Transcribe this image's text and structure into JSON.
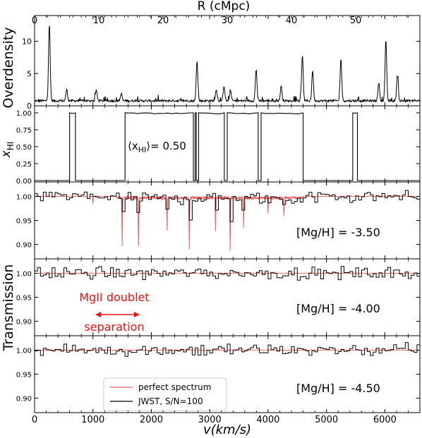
{
  "chart_data": [
    {
      "type": "line",
      "panel": "overdensity",
      "ylabel": "Overdensity",
      "top_axis_label": "R (cMpc)",
      "top_ticks": [
        0,
        10,
        20,
        30,
        40,
        50
      ],
      "xlim_R": [
        0,
        60
      ],
      "ylim": [
        0,
        14
      ],
      "yticks": [
        0,
        5,
        10
      ],
      "peaks": [
        {
          "R": 2.3,
          "value": 12.5
        },
        {
          "R": 5.0,
          "value": 2.5
        },
        {
          "R": 9.6,
          "value": 2.4
        },
        {
          "R": 13.5,
          "value": 1.8
        },
        {
          "R": 25.3,
          "value": 6.8
        },
        {
          "R": 28.3,
          "value": 2.5
        },
        {
          "R": 29.5,
          "value": 3.0
        },
        {
          "R": 30.5,
          "value": 2.3
        },
        {
          "R": 34.5,
          "value": 5.5
        },
        {
          "R": 38.4,
          "value": 3.0
        },
        {
          "R": 41.7,
          "value": 7.7
        },
        {
          "R": 43.3,
          "value": 5.4
        },
        {
          "R": 47.7,
          "value": 7.2
        },
        {
          "R": 53.6,
          "value": 3.5
        },
        {
          "R": 54.7,
          "value": 10.0
        },
        {
          "R": 56.5,
          "value": 4.6
        }
      ]
    },
    {
      "type": "line",
      "panel": "xHI",
      "ylabel_main": "x",
      "ylabel_sub": "HI",
      "ylim": [
        0,
        1
      ],
      "yticks": [
        "0.00",
        "0.25",
        "0.50",
        "0.75",
        "1.00"
      ],
      "annotation_left": "⟨x",
      "annotation_sub": "HI",
      "annotation_right": "⟩= 0.50",
      "neutral_intervals_kms": [
        [
          600,
          700
        ],
        [
          1550,
          2720
        ],
        [
          2750,
          2770
        ],
        [
          2810,
          3250
        ],
        [
          3300,
          3830
        ],
        [
          3880,
          4600
        ],
        [
          5450,
          5530
        ]
      ]
    },
    {
      "type": "line",
      "panel": "transmission_mg_-3.50",
      "annotation": "[Mg/H] = -3.50",
      "ylim": [
        0.87,
        1.03
      ],
      "yticks": [
        "0.90",
        "0.95",
        "1.00"
      ],
      "absorption_lines_kms": [
        {
          "v": 1000,
          "depth": 0.985
        },
        {
          "v": 1500,
          "depth": 0.9
        },
        {
          "v": 1780,
          "depth": 0.9
        },
        {
          "v": 2270,
          "depth": 0.93
        },
        {
          "v": 2650,
          "depth": 0.89
        },
        {
          "v": 3100,
          "depth": 0.93
        },
        {
          "v": 3350,
          "depth": 0.89
        },
        {
          "v": 3580,
          "depth": 0.94
        },
        {
          "v": 4000,
          "depth": 0.97
        },
        {
          "v": 4270,
          "depth": 0.965
        }
      ]
    },
    {
      "type": "line",
      "panel": "transmission_mg_-4.00",
      "annotation": "[Mg/H] = -4.00",
      "ylim": [
        0.87,
        1.03
      ],
      "yticks": [
        "0.90",
        "0.95",
        "1.00"
      ],
      "doublet_label_line1": "MgII doublet",
      "doublet_label_line2": "separation",
      "doublet_arrow_kms": [
        1040,
        1800
      ]
    },
    {
      "type": "line",
      "panel": "transmission_mg_-4.50",
      "annotation": "[Mg/H] = -4.50",
      "ylim": [
        0.87,
        1.03
      ],
      "yticks": [
        "0.90",
        "0.95",
        "1.00"
      ]
    }
  ],
  "figure": {
    "transmission_label": "Transmission",
    "xlabel": "v(km/s)",
    "xlim": [
      0,
      6600
    ],
    "xticks": [
      0,
      1000,
      2000,
      3000,
      4000,
      5000,
      6000
    ],
    "legend": [
      {
        "label": "perfect spectrum",
        "color": "#f06060"
      },
      {
        "label": "JWST, S/N=100",
        "color": "#000000"
      }
    ]
  }
}
